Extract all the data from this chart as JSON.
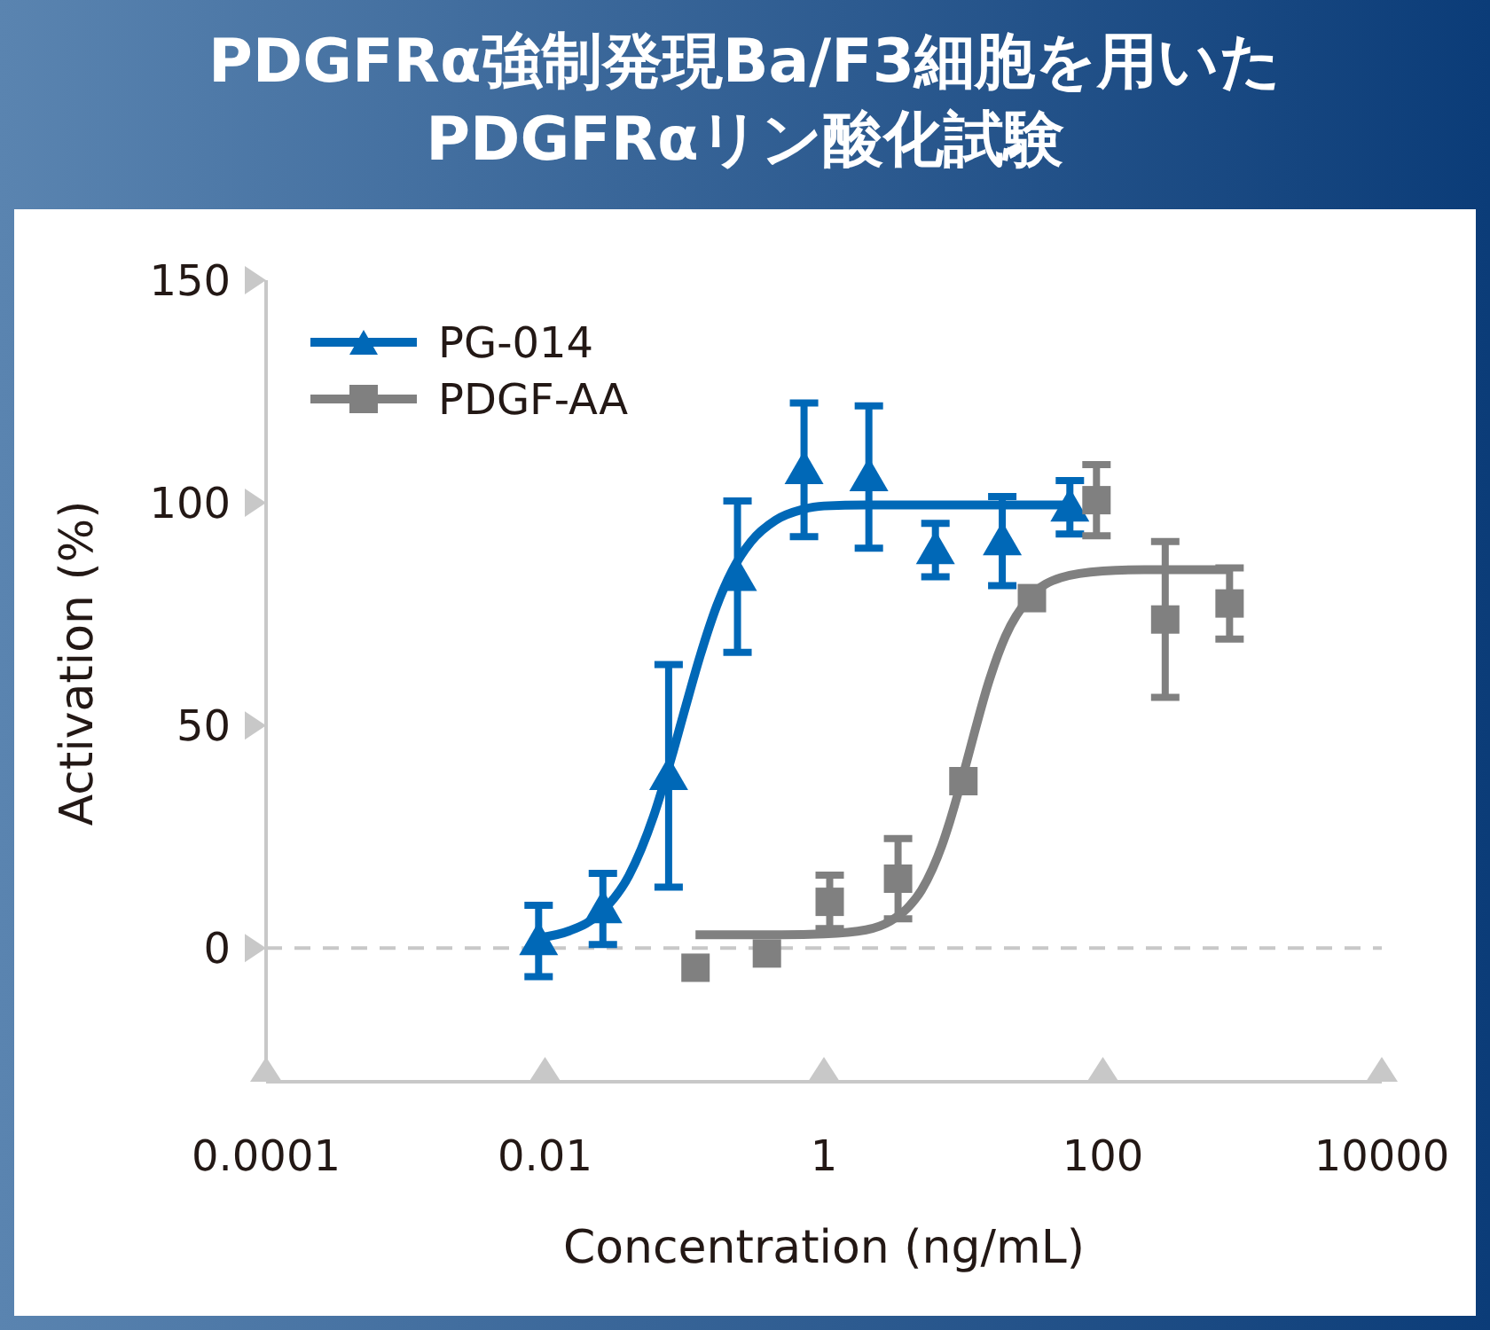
{
  "chart_data": {
    "type": "scatter",
    "title": "PDGFRα強制発現Ba/F3細胞を用いた\nPDGFRαリン酸化試験",
    "xlabel": "Concentration (ng/mL)",
    "ylabel": "Activation (%)",
    "log": "x",
    "xlim": [
      0.0001,
      10000
    ],
    "xticks": [
      0.0001,
      0.01,
      1,
      100,
      10000
    ],
    "ylim": [
      -30,
      150
    ],
    "yticks": [
      0,
      50,
      100,
      150
    ],
    "grid": false,
    "legend": "top left",
    "ref_lines": [
      {
        "axis": "y",
        "value": 0,
        "color": "#c8c8c8",
        "line_style": "dashed"
      }
    ],
    "series": [
      {
        "name": "PG-014",
        "type": "scatter",
        "color": "#0068b7",
        "marker": "triangle",
        "x": [
          0.009,
          0.026,
          0.077,
          0.24,
          0.72,
          2.1,
          6.3,
          19,
          58
        ],
        "values": [
          1.6,
          8.8,
          38.7,
          83.4,
          107.4,
          105.8,
          89.4,
          91.4,
          99
        ],
        "errors": [
          8,
          8,
          25,
          17,
          15,
          16,
          6,
          10,
          6
        ]
      },
      {
        "name": "PDGF-AA",
        "type": "scatter",
        "color": "#808080",
        "marker": "square",
        "x": [
          0.12,
          0.39,
          1.1,
          3.4,
          10,
          31,
          90,
          280,
          810
        ],
        "values": [
          -4.4,
          -1.2,
          10.4,
          15.6,
          37.5,
          78.6,
          100.6,
          73.8,
          77.4
        ],
        "errors": [
          null,
          null,
          6,
          9,
          null,
          null,
          8,
          17.5,
          8
        ]
      },
      {
        "type": "line",
        "color": "#0068b7",
        "marker": "none",
        "x": [
          0.009,
          0.015,
          0.025,
          0.04,
          0.06,
          0.08,
          0.1,
          0.13,
          0.17,
          0.22,
          0.3,
          0.45,
          0.7,
          1,
          2,
          5,
          10,
          30,
          60
        ],
        "values": [
          2.3,
          3.9,
          7.9,
          16.3,
          29.6,
          42.4,
          53.3,
          65.8,
          76.8,
          84.8,
          91.3,
          96.1,
          98.5,
          99.3,
          99.5,
          99.5,
          99.5,
          99.5,
          99.5
        ]
      },
      {
        "type": "line",
        "color": "#808080",
        "marker": "none",
        "x": [
          0.12,
          0.5,
          1,
          2,
          3,
          4,
          5,
          6,
          7,
          8,
          10,
          12,
          15,
          20,
          30,
          50,
          100,
          200,
          850
        ],
        "values": [
          3.0,
          3.0,
          3.2,
          4.1,
          6.1,
          9.1,
          13.0,
          17.8,
          23.0,
          28.5,
          39.1,
          48.4,
          59.2,
          70.0,
          78.8,
          83.2,
          84.7,
          85,
          85
        ]
      }
    ]
  }
}
